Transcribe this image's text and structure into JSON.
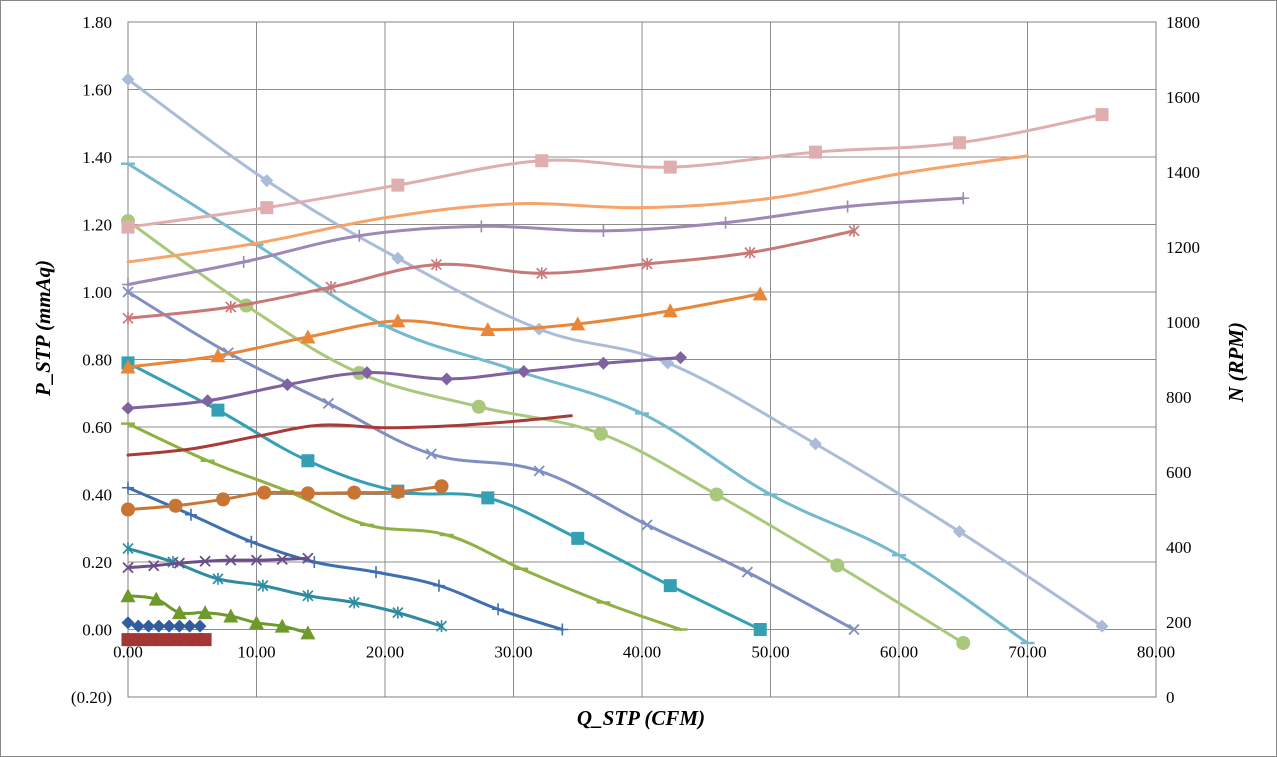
{
  "chart_data": {
    "type": "line",
    "title": "",
    "xlabel": "Q_STP (CFM)",
    "ylabel": "P_STP (mmAq)",
    "y2label": "N (RPM)",
    "xlim": [
      0,
      80
    ],
    "ylim": [
      -0.2,
      1.8
    ],
    "y2lim": [
      0,
      1800
    ],
    "x_ticks": [
      "0.00",
      "10.00",
      "20.00",
      "30.00",
      "40.00",
      "50.00",
      "60.00",
      "70.00",
      "80.00"
    ],
    "y_ticks": [
      "(0.20)",
      "0.00",
      "0.20",
      "0.40",
      "0.60",
      "0.80",
      "1.00",
      "1.20",
      "1.40",
      "1.60",
      "1.80"
    ],
    "y2_ticks": [
      "0",
      "200",
      "400",
      "600",
      "800",
      "1000",
      "1200",
      "1400",
      "1600",
      "1800"
    ],
    "negative_tick_color": "#FF0000",
    "grid": true,
    "legend": "none",
    "series": [
      {
        "axis": "left",
        "color": "#AABCD8",
        "marker": "diamond",
        "points": [
          [
            0,
            1.63
          ],
          [
            10.8,
            1.33
          ],
          [
            21,
            1.1
          ],
          [
            32,
            0.89
          ],
          [
            42,
            0.79
          ],
          [
            53.5,
            0.55
          ],
          [
            64.7,
            0.29
          ],
          [
            75.8,
            0.01
          ]
        ]
      },
      {
        "axis": "left",
        "color": "#74B9CF",
        "marker": "dash",
        "points": [
          [
            0,
            1.38
          ],
          [
            10,
            1.14
          ],
          [
            20,
            0.9
          ],
          [
            30,
            0.77
          ],
          [
            40,
            0.64
          ],
          [
            50,
            0.4
          ],
          [
            60,
            0.22
          ],
          [
            70,
            -0.04
          ]
        ]
      },
      {
        "axis": "left",
        "color": "#A9C87C",
        "marker": "circle",
        "points": [
          [
            0,
            1.21
          ],
          [
            9.2,
            0.96
          ],
          [
            18,
            0.76
          ],
          [
            27.3,
            0.66
          ],
          [
            36.8,
            0.58
          ],
          [
            45.8,
            0.4
          ],
          [
            55.2,
            0.19
          ],
          [
            65,
            -0.04
          ]
        ]
      },
      {
        "axis": "left",
        "color": "#7F8FC1",
        "marker": "x",
        "points": [
          [
            0,
            1.0
          ],
          [
            7.8,
            0.82
          ],
          [
            15.6,
            0.67
          ],
          [
            23.6,
            0.52
          ],
          [
            32,
            0.47
          ],
          [
            40.4,
            0.31
          ],
          [
            48.2,
            0.17
          ],
          [
            56.5,
            0.0
          ]
        ]
      },
      {
        "axis": "left",
        "color": "#35A0B4",
        "marker": "square",
        "points": [
          [
            0,
            0.79
          ],
          [
            7,
            0.65
          ],
          [
            14,
            0.5
          ],
          [
            21,
            0.41
          ],
          [
            28,
            0.39
          ],
          [
            35,
            0.27
          ],
          [
            42.2,
            0.13
          ],
          [
            49.2,
            0.0
          ]
        ]
      },
      {
        "axis": "left",
        "color": "#8FB043",
        "marker": "dash",
        "points": [
          [
            0,
            0.61
          ],
          [
            6.2,
            0.5
          ],
          [
            12.4,
            0.41
          ],
          [
            18.6,
            0.31
          ],
          [
            24.8,
            0.28
          ],
          [
            30.6,
            0.18
          ],
          [
            37,
            0.08
          ],
          [
            43,
            0.0
          ]
        ]
      },
      {
        "axis": "left",
        "color": "#3E6FB0",
        "marker": "plus",
        "points": [
          [
            0,
            0.42
          ],
          [
            4.9,
            0.34
          ],
          [
            9.6,
            0.26
          ],
          [
            14.5,
            0.2
          ],
          [
            19.3,
            0.17
          ],
          [
            24.2,
            0.13
          ],
          [
            28.8,
            0.06
          ],
          [
            33.8,
            0.0
          ]
        ]
      },
      {
        "axis": "left",
        "color": "#2E8BA0",
        "marker": "asterisk",
        "points": [
          [
            0,
            0.24
          ],
          [
            3.5,
            0.2
          ],
          [
            7,
            0.15
          ],
          [
            10.5,
            0.13
          ],
          [
            14,
            0.1
          ],
          [
            17.6,
            0.08
          ],
          [
            21,
            0.05
          ],
          [
            24.4,
            0.01
          ]
        ]
      },
      {
        "axis": "left",
        "color": "#6E9A2C",
        "marker": "triangle",
        "points": [
          [
            0,
            0.1
          ],
          [
            2.2,
            0.09
          ],
          [
            4,
            0.05
          ],
          [
            6,
            0.05
          ],
          [
            8,
            0.04
          ],
          [
            10,
            0.02
          ],
          [
            12,
            0.01
          ],
          [
            14,
            -0.01
          ]
        ]
      },
      {
        "axis": "left",
        "color": "#2F5D9E",
        "marker": "diamond",
        "points": [
          [
            0,
            0.02
          ],
          [
            0.8,
            0.01
          ],
          [
            1.6,
            0.01
          ],
          [
            2.4,
            0.01
          ],
          [
            3.2,
            0.01
          ],
          [
            4,
            0.01
          ],
          [
            4.8,
            0.01
          ],
          [
            5.6,
            0.01
          ]
        ]
      },
      {
        "axis": "left",
        "color": "#A33533",
        "marker": "square",
        "points": [
          [
            0,
            -0.03
          ],
          [
            0.9,
            -0.03
          ],
          [
            1.8,
            -0.03
          ],
          [
            2.7,
            -0.03
          ],
          [
            3.6,
            -0.03
          ],
          [
            4.5,
            -0.03
          ],
          [
            5.4,
            -0.03
          ],
          [
            6,
            -0.03
          ]
        ]
      },
      {
        "axis": "right",
        "color": "#E0AEAE",
        "marker": "square",
        "points": [
          [
            0,
            1253
          ],
          [
            10.8,
            1305
          ],
          [
            21,
            1365
          ],
          [
            32.2,
            1430
          ],
          [
            42.2,
            1413
          ],
          [
            53.5,
            1453
          ],
          [
            64.7,
            1478
          ],
          [
            75.8,
            1553
          ]
        ]
      },
      {
        "axis": "right",
        "color": "#F6A46A",
        "marker": "none",
        "points": [
          [
            0,
            1160
          ],
          [
            10,
            1210
          ],
          [
            20,
            1278
          ],
          [
            30,
            1315
          ],
          [
            40,
            1305
          ],
          [
            50,
            1330
          ],
          [
            60,
            1395
          ],
          [
            70,
            1443
          ]
        ]
      },
      {
        "axis": "right",
        "color": "#9D88B6",
        "marker": "plus",
        "points": [
          [
            0,
            1100
          ],
          [
            9,
            1160
          ],
          [
            18,
            1230
          ],
          [
            27.5,
            1255
          ],
          [
            37,
            1243
          ],
          [
            46.5,
            1265
          ],
          [
            56,
            1308
          ],
          [
            65,
            1330
          ]
        ]
      },
      {
        "axis": "right",
        "color": "#C87877",
        "marker": "asterisk",
        "points": [
          [
            0,
            1010
          ],
          [
            8,
            1040
          ],
          [
            15.8,
            1093
          ],
          [
            24,
            1153
          ],
          [
            32.2,
            1130
          ],
          [
            40.4,
            1155
          ],
          [
            48.4,
            1185
          ],
          [
            56.5,
            1243
          ]
        ]
      },
      {
        "axis": "right",
        "color": "#E8873A",
        "marker": "triangle",
        "points": [
          [
            0,
            880
          ],
          [
            7,
            910
          ],
          [
            14,
            960
          ],
          [
            21,
            1003
          ],
          [
            28,
            980
          ],
          [
            35,
            995
          ],
          [
            42.2,
            1030
          ],
          [
            49.2,
            1075
          ]
        ]
      },
      {
        "axis": "right",
        "color": "#7F63A1",
        "marker": "diamond",
        "points": [
          [
            0,
            770
          ],
          [
            6.2,
            790
          ],
          [
            12.4,
            833
          ],
          [
            18.6,
            865
          ],
          [
            24.8,
            848
          ],
          [
            30.8,
            868
          ],
          [
            37,
            890
          ],
          [
            43,
            905
          ]
        ]
      },
      {
        "axis": "right",
        "color": "#A83A38",
        "marker": "none",
        "points": [
          [
            0,
            645
          ],
          [
            5,
            662
          ],
          [
            10,
            695
          ],
          [
            15,
            725
          ],
          [
            20,
            718
          ],
          [
            25,
            723
          ],
          [
            30,
            735
          ],
          [
            34.5,
            750
          ]
        ]
      },
      {
        "axis": "right",
        "color": "#C87534",
        "marker": "circle",
        "points": [
          [
            0,
            500
          ],
          [
            3.7,
            510
          ],
          [
            7.4,
            527
          ],
          [
            10.6,
            545
          ],
          [
            14,
            543
          ],
          [
            17.6,
            545
          ],
          [
            21,
            547
          ],
          [
            24.4,
            562
          ]
        ]
      },
      {
        "axis": "right",
        "color": "#6A4E87",
        "marker": "x",
        "points": [
          [
            0,
            345
          ],
          [
            2,
            350
          ],
          [
            4,
            357
          ],
          [
            6,
            362
          ],
          [
            8,
            365
          ],
          [
            10,
            365
          ],
          [
            12,
            367
          ],
          [
            14,
            370
          ]
        ]
      }
    ]
  }
}
